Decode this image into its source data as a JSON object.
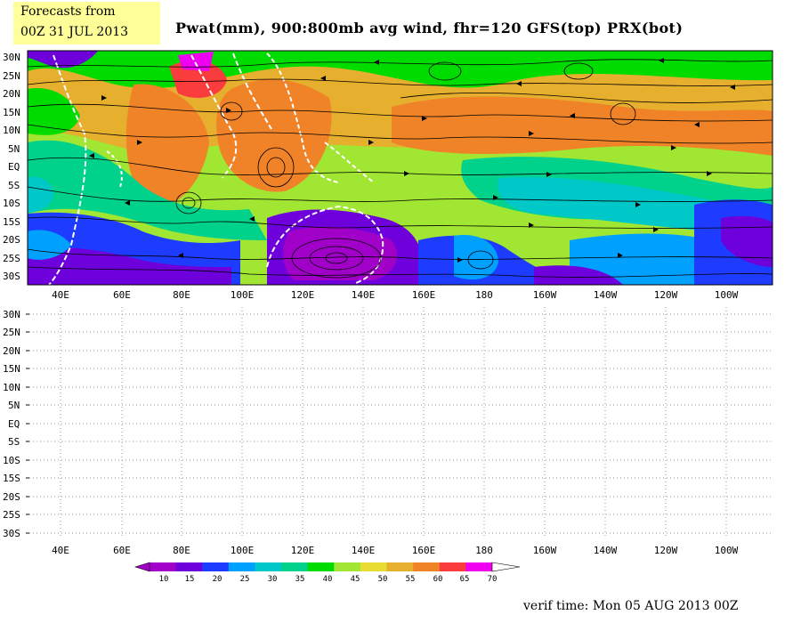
{
  "header": {
    "forecast_line1": "Forecasts from",
    "forecast_line2": "00Z 31 JUL 2013",
    "title": "Pwat(mm), 900:800mb avg wind, fhr=120 GFS(top) PRX(bot)"
  },
  "latitude_labels": [
    "30N",
    "25N",
    "20N",
    "15N",
    "10N",
    "5N",
    "EQ",
    "5S",
    "10S",
    "15S",
    "20S",
    "25S",
    "30S"
  ],
  "longitude_labels": [
    "40E",
    "60E",
    "80E",
    "100E",
    "120E",
    "140E",
    "160E",
    "180",
    "160W",
    "140W",
    "120W",
    "100W"
  ],
  "top_panel": {
    "model": "GFS",
    "variable": "Pwat(mm)",
    "overlay": "streamlines"
  },
  "bottom_panel": {
    "model": "PRX",
    "status": "empty grid"
  },
  "colorbar": {
    "ticks": [
      "10",
      "15",
      "20",
      "25",
      "30",
      "35",
      "40",
      "45",
      "50",
      "55",
      "60",
      "65",
      "70"
    ],
    "colors": [
      "#a000c8",
      "#6e00dc",
      "#1e3cff",
      "#00a0ff",
      "#00c8c8",
      "#00d28c",
      "#00dc00",
      "#a0e632",
      "#e6dc32",
      "#e6af2d",
      "#f08228",
      "#fa3c3c",
      "#f000f0"
    ]
  },
  "footer": {
    "verif_time": "verif time: Mon 05 AUG 2013 00Z"
  }
}
